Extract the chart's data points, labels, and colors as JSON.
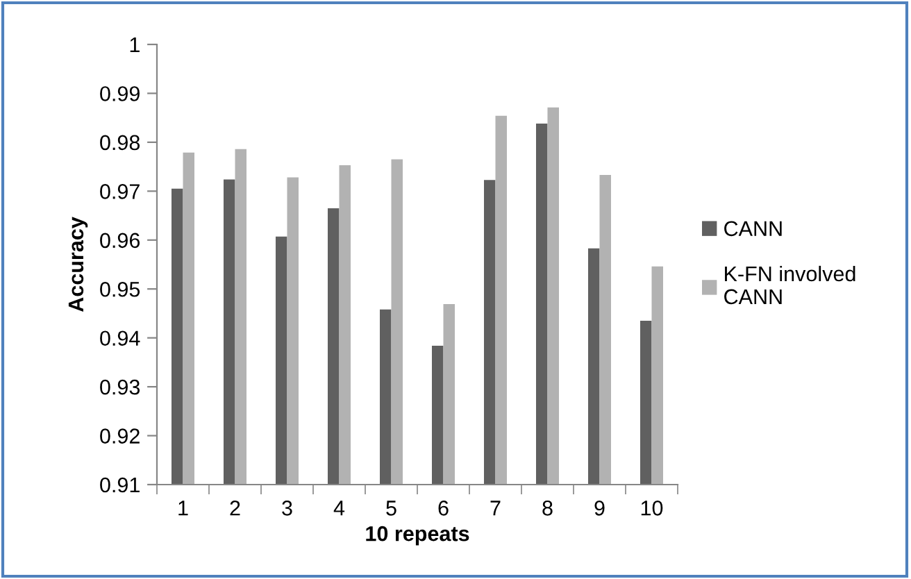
{
  "chart_data": {
    "type": "bar",
    "xlabel": "10 repeats",
    "ylabel": "Accuracy",
    "categories": [
      "1",
      "2",
      "3",
      "4",
      "5",
      "6",
      "7",
      "8",
      "9",
      "10"
    ],
    "series": [
      {
        "name": "CANN",
        "color": "#606060",
        "values": [
          0.9705,
          0.9724,
          0.9607,
          0.9665,
          0.9458,
          0.9384,
          0.9723,
          0.9838,
          0.9583,
          0.9435
        ]
      },
      {
        "name": "K-FN involved\nCANN",
        "color": "#b2b2b2",
        "values": [
          0.9779,
          0.9786,
          0.9728,
          0.9753,
          0.9765,
          0.9469,
          0.9854,
          0.9871,
          0.9733,
          0.9546
        ]
      }
    ],
    "ylim": [
      0.91,
      1
    ],
    "yticks": [
      0.91,
      0.92,
      0.93,
      0.94,
      0.95,
      0.96,
      0.97,
      0.98,
      0.99,
      1
    ],
    "grid": false,
    "legend": "right"
  }
}
